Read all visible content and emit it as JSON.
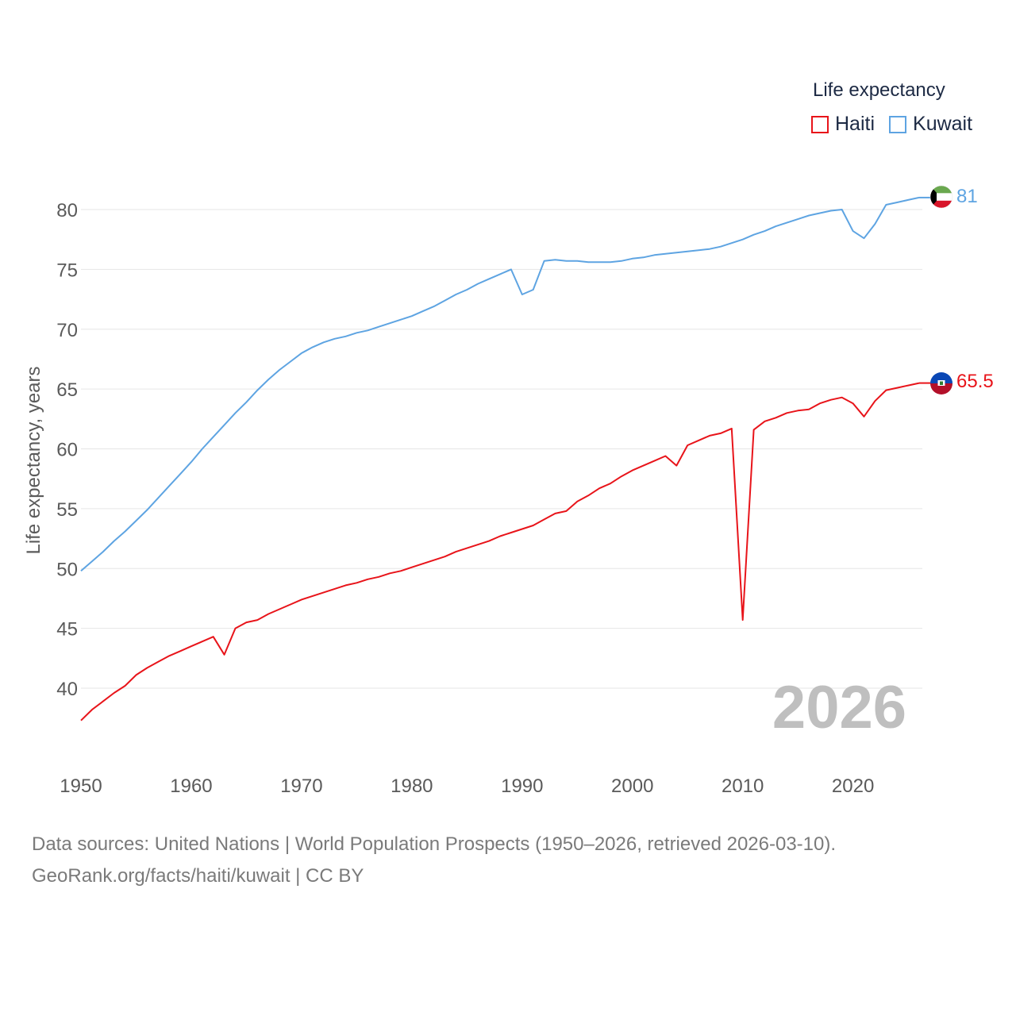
{
  "legend": {
    "title": "Life expectancy",
    "entries": [
      {
        "name": "Haiti",
        "color": "#e8141a"
      },
      {
        "name": "Kuwait",
        "color": "#5ea4e2"
      }
    ]
  },
  "year_stamp": "2026",
  "sources": {
    "line1": "Data sources: United Nations | World Population Prospects (1950–2026, retrieved 2026-03-10).",
    "line2": "GeoRank.org/facts/haiti/kuwait | CC BY"
  },
  "chart_data": {
    "type": "line",
    "ylabel": "Life expectancy, years",
    "xlabel": "",
    "xlim": [
      1950,
      2026
    ],
    "ylim": [
      34,
      83
    ],
    "x_ticks": [
      1950,
      1960,
      1970,
      1980,
      1990,
      2000,
      2010,
      2020
    ],
    "y_ticks": [
      40,
      45,
      50,
      55,
      60,
      65,
      70,
      75,
      80
    ],
    "end_labels": {
      "Kuwait": "81",
      "Haiti": "65.5"
    },
    "series": [
      {
        "name": "Kuwait",
        "color": "#5ea4e2",
        "points": [
          [
            1950,
            49.8
          ],
          [
            1951,
            50.6
          ],
          [
            1952,
            51.4
          ],
          [
            1953,
            52.3
          ],
          [
            1954,
            53.1
          ],
          [
            1955,
            54.0
          ],
          [
            1956,
            54.9
          ],
          [
            1957,
            55.9
          ],
          [
            1958,
            56.9
          ],
          [
            1959,
            57.9
          ],
          [
            1960,
            58.9
          ],
          [
            1961,
            60.0
          ],
          [
            1962,
            61.0
          ],
          [
            1963,
            62.0
          ],
          [
            1964,
            63.0
          ],
          [
            1965,
            63.9
          ],
          [
            1966,
            64.9
          ],
          [
            1967,
            65.8
          ],
          [
            1968,
            66.6
          ],
          [
            1969,
            67.3
          ],
          [
            1970,
            68.0
          ],
          [
            1971,
            68.5
          ],
          [
            1972,
            68.9
          ],
          [
            1973,
            69.2
          ],
          [
            1974,
            69.4
          ],
          [
            1975,
            69.7
          ],
          [
            1976,
            69.9
          ],
          [
            1977,
            70.2
          ],
          [
            1978,
            70.5
          ],
          [
            1979,
            70.8
          ],
          [
            1980,
            71.1
          ],
          [
            1981,
            71.5
          ],
          [
            1982,
            71.9
          ],
          [
            1983,
            72.4
          ],
          [
            1984,
            72.9
          ],
          [
            1985,
            73.3
          ],
          [
            1986,
            73.8
          ],
          [
            1987,
            74.2
          ],
          [
            1988,
            74.6
          ],
          [
            1989,
            75.0
          ],
          [
            1990,
            72.9
          ],
          [
            1991,
            73.3
          ],
          [
            1992,
            75.7
          ],
          [
            1993,
            75.8
          ],
          [
            1994,
            75.7
          ],
          [
            1995,
            75.7
          ],
          [
            1996,
            75.6
          ],
          [
            1997,
            75.6
          ],
          [
            1998,
            75.6
          ],
          [
            1999,
            75.7
          ],
          [
            2000,
            75.9
          ],
          [
            2001,
            76.0
          ],
          [
            2002,
            76.2
          ],
          [
            2003,
            76.3
          ],
          [
            2004,
            76.4
          ],
          [
            2005,
            76.5
          ],
          [
            2006,
            76.6
          ],
          [
            2007,
            76.7
          ],
          [
            2008,
            76.9
          ],
          [
            2009,
            77.2
          ],
          [
            2010,
            77.5
          ],
          [
            2011,
            77.9
          ],
          [
            2012,
            78.2
          ],
          [
            2013,
            78.6
          ],
          [
            2014,
            78.9
          ],
          [
            2015,
            79.2
          ],
          [
            2016,
            79.5
          ],
          [
            2017,
            79.7
          ],
          [
            2018,
            79.9
          ],
          [
            2019,
            80.0
          ],
          [
            2020,
            78.2
          ],
          [
            2021,
            77.6
          ],
          [
            2022,
            78.8
          ],
          [
            2023,
            80.4
          ],
          [
            2024,
            80.6
          ],
          [
            2025,
            80.8
          ],
          [
            2026,
            81.0
          ]
        ]
      },
      {
        "name": "Haiti",
        "color": "#e8141a",
        "points": [
          [
            1950,
            37.3
          ],
          [
            1951,
            38.2
          ],
          [
            1952,
            38.9
          ],
          [
            1953,
            39.6
          ],
          [
            1954,
            40.2
          ],
          [
            1955,
            41.1
          ],
          [
            1956,
            41.7
          ],
          [
            1957,
            42.2
          ],
          [
            1958,
            42.7
          ],
          [
            1959,
            43.1
          ],
          [
            1960,
            43.5
          ],
          [
            1961,
            43.9
          ],
          [
            1962,
            44.3
          ],
          [
            1963,
            42.8
          ],
          [
            1964,
            45.0
          ],
          [
            1965,
            45.5
          ],
          [
            1966,
            45.7
          ],
          [
            1967,
            46.2
          ],
          [
            1968,
            46.6
          ],
          [
            1969,
            47.0
          ],
          [
            1970,
            47.4
          ],
          [
            1971,
            47.7
          ],
          [
            1972,
            48.0
          ],
          [
            1973,
            48.3
          ],
          [
            1974,
            48.6
          ],
          [
            1975,
            48.8
          ],
          [
            1976,
            49.1
          ],
          [
            1977,
            49.3
          ],
          [
            1978,
            49.6
          ],
          [
            1979,
            49.8
          ],
          [
            1980,
            50.1
          ],
          [
            1981,
            50.4
          ],
          [
            1982,
            50.7
          ],
          [
            1983,
            51.0
          ],
          [
            1984,
            51.4
          ],
          [
            1985,
            51.7
          ],
          [
            1986,
            52.0
          ],
          [
            1987,
            52.3
          ],
          [
            1988,
            52.7
          ],
          [
            1989,
            53.0
          ],
          [
            1990,
            53.3
          ],
          [
            1991,
            53.6
          ],
          [
            1992,
            54.1
          ],
          [
            1993,
            54.6
          ],
          [
            1994,
            54.8
          ],
          [
            1995,
            55.6
          ],
          [
            1996,
            56.1
          ],
          [
            1997,
            56.7
          ],
          [
            1998,
            57.1
          ],
          [
            1999,
            57.7
          ],
          [
            2000,
            58.2
          ],
          [
            2001,
            58.6
          ],
          [
            2002,
            59.0
          ],
          [
            2003,
            59.4
          ],
          [
            2004,
            58.6
          ],
          [
            2005,
            60.3
          ],
          [
            2006,
            60.7
          ],
          [
            2007,
            61.1
          ],
          [
            2008,
            61.3
          ],
          [
            2009,
            61.7
          ],
          [
            2010,
            45.7
          ],
          [
            2011,
            61.6
          ],
          [
            2012,
            62.3
          ],
          [
            2013,
            62.6
          ],
          [
            2014,
            63.0
          ],
          [
            2015,
            63.2
          ],
          [
            2016,
            63.3
          ],
          [
            2017,
            63.8
          ],
          [
            2018,
            64.1
          ],
          [
            2019,
            64.3
          ],
          [
            2020,
            63.8
          ],
          [
            2021,
            62.7
          ],
          [
            2022,
            64.0
          ],
          [
            2023,
            64.9
          ],
          [
            2024,
            65.1
          ],
          [
            2025,
            65.3
          ],
          [
            2026,
            65.5
          ]
        ]
      }
    ]
  }
}
